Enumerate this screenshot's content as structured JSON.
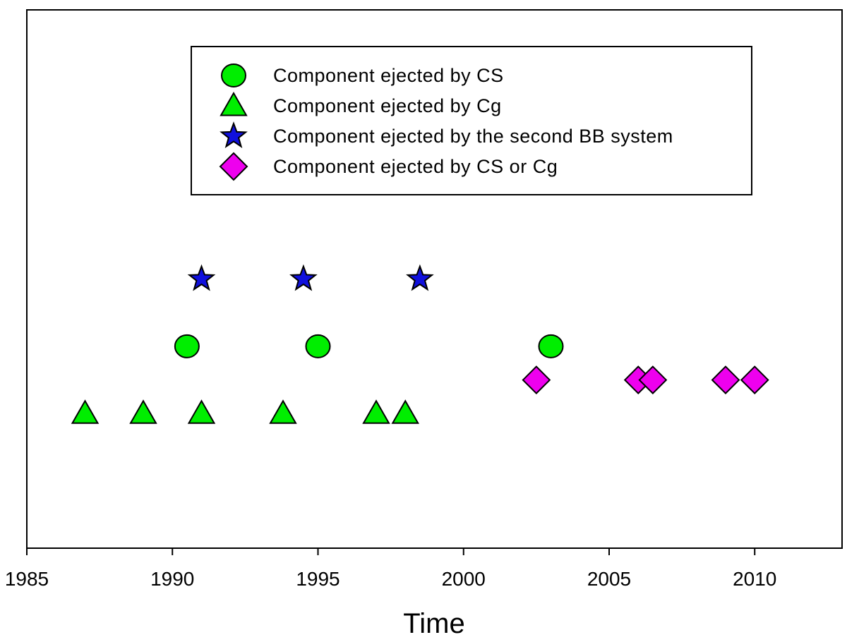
{
  "chart_data": {
    "type": "scatter",
    "xlabel": "Time",
    "ylabel": "",
    "xlim": [
      1985,
      2013
    ],
    "ylim": [
      0,
      8
    ],
    "xticks": [
      1985,
      1990,
      1995,
      2000,
      2005,
      2010
    ],
    "yticks": [],
    "grid": false,
    "legend_position": "top-center",
    "series": [
      {
        "name": "Component ejected by CS",
        "marker": "circle",
        "color": "#00ee00",
        "points": [
          {
            "x": 1990.5,
            "y": 3
          },
          {
            "x": 1995.0,
            "y": 3
          },
          {
            "x": 2003.0,
            "y": 3
          }
        ]
      },
      {
        "name": "Component ejected by Cg",
        "marker": "triangle",
        "color": "#00ee00",
        "points": [
          {
            "x": 1987.0,
            "y": 2
          },
          {
            "x": 1989.0,
            "y": 2
          },
          {
            "x": 1991.0,
            "y": 2
          },
          {
            "x": 1993.8,
            "y": 2
          },
          {
            "x": 1997.0,
            "y": 2
          },
          {
            "x": 1998.0,
            "y": 2
          }
        ]
      },
      {
        "name": "Component ejected by the second BB system",
        "marker": "star",
        "color": "#1010dd",
        "points": [
          {
            "x": 1991.0,
            "y": 4
          },
          {
            "x": 1994.5,
            "y": 4
          },
          {
            "x": 1998.5,
            "y": 4
          }
        ]
      },
      {
        "name": "Component ejected by CS or Cg",
        "marker": "diamond",
        "color": "#ee00ee",
        "points": [
          {
            "x": 2002.5,
            "y": 2.5
          },
          {
            "x": 2006.0,
            "y": 2.5
          },
          {
            "x": 2006.5,
            "y": 2.5
          },
          {
            "x": 2009.0,
            "y": 2.5
          },
          {
            "x": 2010.0,
            "y": 2.5
          }
        ]
      }
    ]
  }
}
